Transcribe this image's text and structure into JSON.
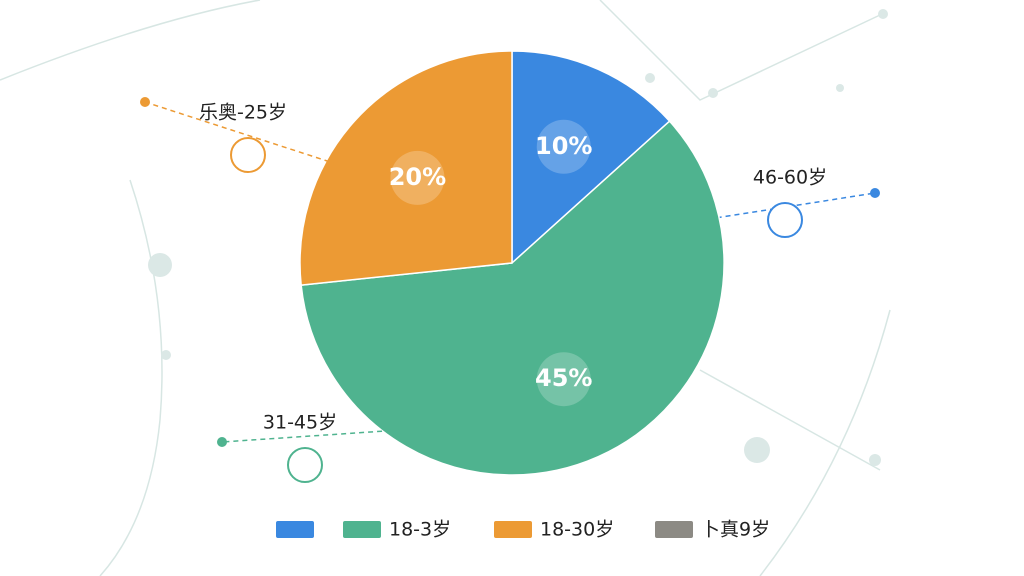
{
  "chart_data": {
    "type": "pie",
    "categories": [
      null,
      "18-3岁",
      "18-30岁",
      "卜真9岁"
    ],
    "values": [
      10,
      45,
      20,
      null
    ],
    "value_labels": [
      "10%",
      "45%",
      "20%",
      null
    ],
    "colors": [
      "#3a88e0",
      "#4fb38f",
      "#ec9a34",
      "#8c8a84"
    ],
    "slice_labels": [
      "46-60岁",
      "31-45岁",
      "乐奥-25岁",
      null
    ]
  }
}
